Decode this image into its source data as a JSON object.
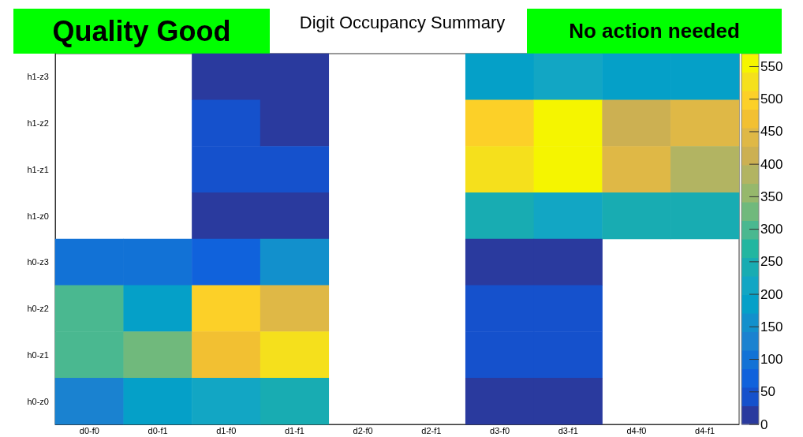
{
  "chart_data": {
    "type": "heatmap",
    "title": "Digit Occupancy Summary",
    "annotations": [
      "Quality Good",
      "No action needed"
    ],
    "categories": [
      "d0-f0",
      "d0-f1",
      "d1-f0",
      "d1-f1",
      "d2-f0",
      "d2-f1",
      "d3-f0",
      "d3-f1",
      "d4-f0",
      "d4-f1"
    ],
    "y_categories": [
      "h1-z3",
      "h1-z2",
      "h1-z1",
      "h1-z0",
      "h0-z3",
      "h0-z2",
      "h0-z1",
      "h0-z0"
    ],
    "cells": [
      [
        null,
        null,
        15,
        15,
        null,
        null,
        190,
        215,
        190,
        190
      ],
      [
        null,
        null,
        45,
        15,
        null,
        null,
        500,
        560,
        400,
        440
      ],
      [
        null,
        null,
        45,
        45,
        null,
        null,
        530,
        560,
        440,
        380
      ],
      [
        null,
        null,
        15,
        15,
        null,
        null,
        250,
        210,
        250,
        250
      ],
      [
        100,
        100,
        70,
        165,
        null,
        null,
        15,
        15,
        null,
        null
      ],
      [
        300,
        190,
        500,
        440,
        null,
        null,
        45,
        45,
        null,
        null
      ],
      [
        300,
        330,
        470,
        530,
        null,
        null,
        45,
        45,
        null,
        null
      ],
      [
        130,
        190,
        210,
        250,
        null,
        null,
        15,
        15,
        null,
        null
      ]
    ],
    "clim": [
      0,
      570
    ],
    "cticks": [
      0,
      50,
      100,
      150,
      200,
      250,
      300,
      350,
      400,
      450,
      500,
      550
    ]
  }
}
